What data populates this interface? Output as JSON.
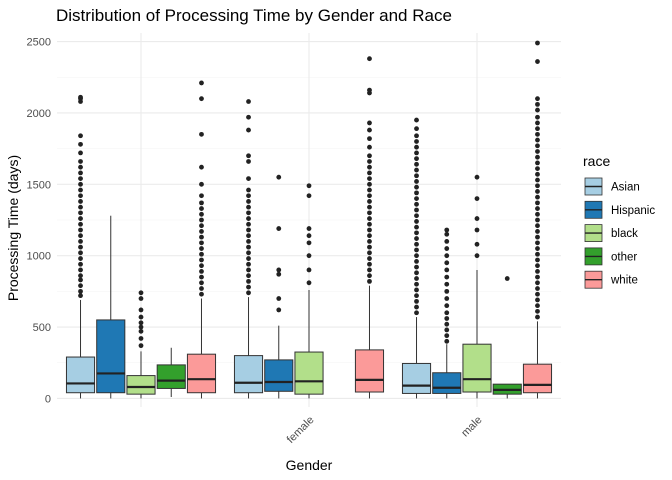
{
  "chart_data": {
    "type": "boxplot",
    "title": "Distribution of Processing Time by Gender and Race",
    "xlabel": "Gender",
    "ylabel": "Processing Time (days)",
    "categories": [
      "",
      "female",
      "male"
    ],
    "ylim": [
      -60,
      2560
    ],
    "yticks": [
      0,
      500,
      1000,
      1500,
      2000,
      2500
    ],
    "grid": true,
    "legend": {
      "title": "race",
      "position": "right",
      "entries": [
        {
          "name": "Asian",
          "color": "#a6cee3"
        },
        {
          "name": "Hispanic",
          "color": "#1f78b4"
        },
        {
          "name": "black",
          "color": "#b2df8a"
        },
        {
          "name": "other",
          "color": "#33a02c"
        },
        {
          "name": "white",
          "color": "#fb9a99"
        }
      ]
    },
    "series": [
      {
        "name": "Asian",
        "color": "#a6cee3",
        "boxes": [
          {
            "q1": 40,
            "median": 105,
            "q3": 290,
            "whisker_low": 0,
            "whisker_high": 690,
            "outliers": [
              720,
              750,
              790,
              830,
              860,
              900,
              940,
              980,
              1020,
              1060,
              1100,
              1140,
              1180,
              1220,
              1260,
              1300,
              1340,
              1380,
              1420,
              1460,
              1500,
              1540,
              1580,
              1620,
              1660,
              1720,
              1780,
              1840,
              2080,
              2100,
              2110
            ]
          },
          {
            "q1": 40,
            "median": 110,
            "q3": 300,
            "whisker_low": 0,
            "whisker_high": 710,
            "outliers": [
              740,
              780,
              820,
              860,
              900,
              940,
              980,
              1020,
              1060,
              1100,
              1140,
              1180,
              1220,
              1260,
              1300,
              1340,
              1380,
              1420,
              1460,
              1540,
              1660,
              1700,
              1880,
              1970,
              2080
            ]
          },
          {
            "q1": 35,
            "median": 90,
            "q3": 245,
            "whisker_low": 0,
            "whisker_high": 570,
            "outliers": [
              600,
              640,
              680,
              720,
              760,
              800,
              840,
              880,
              920,
              960,
              1000,
              1040,
              1080,
              1120,
              1160,
              1200,
              1240,
              1280,
              1320,
              1360,
              1400,
              1440,
              1480,
              1520,
              1560,
              1600,
              1640,
              1680,
              1720,
              1760,
              1800,
              1840,
              1890,
              1950
            ]
          }
        ]
      },
      {
        "name": "Hispanic",
        "color": "#1f78b4",
        "boxes": [
          {
            "q1": 40,
            "median": 175,
            "q3": 550,
            "whisker_low": 0,
            "whisker_high": 1280,
            "outliers": []
          },
          {
            "q1": 50,
            "median": 115,
            "q3": 270,
            "whisker_low": 0,
            "whisker_high": 510,
            "outliers": [
              620,
              700,
              870,
              900,
              1190,
              1550
            ]
          },
          {
            "q1": 35,
            "median": 75,
            "q3": 180,
            "whisker_low": 0,
            "whisker_high": 380,
            "outliers": [
              400,
              440,
              480,
              520,
              560,
              600,
              650,
              700,
              750,
              800,
              850,
              900,
              950,
              1000,
              1050,
              1100,
              1150,
              1180
            ]
          }
        ]
      },
      {
        "name": "black",
        "color": "#b2df8a",
        "boxes": [
          {
            "q1": 30,
            "median": 80,
            "q3": 160,
            "whisker_low": 0,
            "whisker_high": 330,
            "outliers": [
              370,
              420,
              470,
              500,
              530,
              570,
              620,
              700,
              740
            ]
          },
          {
            "q1": 30,
            "median": 120,
            "q3": 325,
            "whisker_low": 0,
            "whisker_high": 760,
            "outliers": [
              810,
              900,
              1000,
              1090,
              1140,
              1190,
              1420,
              1490
            ]
          },
          {
            "q1": 45,
            "median": 135,
            "q3": 380,
            "whisker_low": 0,
            "whisker_high": 900,
            "outliers": [
              1000,
              1080,
              1180,
              1260,
              1400,
              1550
            ]
          }
        ]
      },
      {
        "name": "other",
        "color": "#33a02c",
        "boxes": [
          {
            "q1": 70,
            "median": 125,
            "q3": 235,
            "whisker_low": 10,
            "whisker_high": 355,
            "outliers": []
          },
          null,
          {
            "q1": 30,
            "median": 60,
            "q3": 100,
            "whisker_low": 0,
            "whisker_high": 100,
            "outliers": [
              840
            ]
          }
        ]
      },
      {
        "name": "white",
        "color": "#fb9a99",
        "boxes": [
          {
            "q1": 40,
            "median": 135,
            "q3": 310,
            "whisker_low": 0,
            "whisker_high": 700,
            "outliers": [
              730,
              770,
              810,
              850,
              890,
              930,
              970,
              1010,
              1050,
              1090,
              1130,
              1170,
              1210,
              1250,
              1290,
              1330,
              1370,
              1420,
              1500,
              1620,
              1850,
              2100,
              2210
            ]
          },
          {
            "q1": 45,
            "median": 130,
            "q3": 340,
            "whisker_low": 0,
            "whisker_high": 790,
            "outliers": [
              820,
              860,
              900,
              940,
              980,
              1020,
              1060,
              1100,
              1140,
              1180,
              1220,
              1260,
              1300,
              1340,
              1380,
              1420,
              1460,
              1500,
              1540,
              1580,
              1620,
              1660,
              1700,
              1760,
              1820,
              1880,
              1930,
              2140,
              2160,
              2380
            ]
          },
          {
            "q1": 40,
            "median": 95,
            "q3": 240,
            "whisker_low": 0,
            "whisker_high": 540,
            "outliers": [
              570,
              610,
              650,
              690,
              730,
              770,
              810,
              850,
              890,
              930,
              970,
              1010,
              1050,
              1090,
              1130,
              1170,
              1210,
              1250,
              1290,
              1330,
              1370,
              1410,
              1450,
              1490,
              1530,
              1570,
              1610,
              1650,
              1690,
              1730,
              1770,
              1810,
              1850,
              1890,
              1930,
              1970,
              2020,
              2060,
              2100,
              2360,
              2490
            ]
          }
        ]
      }
    ]
  }
}
